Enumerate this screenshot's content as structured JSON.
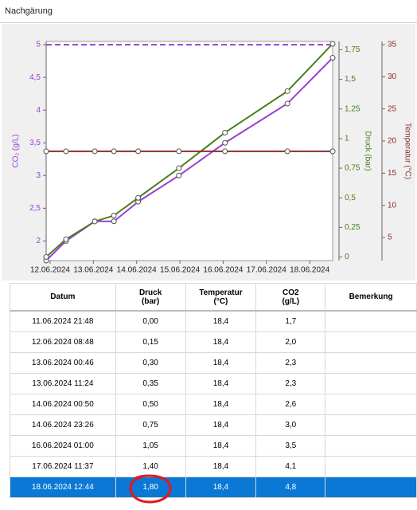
{
  "tab": {
    "title": "Nachgärung"
  },
  "chart_data": {
    "type": "line",
    "ylabel": "CO₂ (g/L)",
    "y2label": "Druck (bar)",
    "y3label": "Temperatur (°C)",
    "x": [
      "11.06.2024 21:48",
      "12.06.2024 08:48",
      "13.06.2024 00:46",
      "13.06.2024 11:24",
      "14.06.2024 00:50",
      "14.06.2024 23:26",
      "16.06.2024 01:00",
      "17.06.2024 11:37",
      "18.06.2024 12:44"
    ],
    "xlim": [
      "11.06.2024 21:48",
      "18.06.2024 12:44"
    ],
    "xticks": [
      "12.06.2024",
      "13.06.2024",
      "14.06.2024",
      "15.06.2024",
      "16.06.2024",
      "17.06.2024",
      "18.06.2024"
    ],
    "ylim": [
      1.7,
      5.05
    ],
    "yticks": [
      2,
      {
        "value": 2.5,
        "label": "2,5"
      },
      3,
      {
        "value": 3.5,
        "label": "3,5"
      },
      4,
      {
        "value": 4.5,
        "label": "4,5"
      },
      5
    ],
    "y2lim": [
      -0.03,
      1.82
    ],
    "y2ticks": [
      0,
      {
        "value": 0.25,
        "label": "0,25"
      },
      {
        "value": 0.5,
        "label": "0,5"
      },
      {
        "value": 0.75,
        "label": "0,75"
      },
      1,
      {
        "value": 1.25,
        "label": "1,25"
      },
      {
        "value": 1.5,
        "label": "1,5"
      },
      {
        "value": 1.75,
        "label": "1,75"
      }
    ],
    "y3lim": [
      1.4,
      35.5
    ],
    "y3ticks": [
      5,
      10,
      15,
      20,
      25,
      30,
      35
    ],
    "hlines": [
      {
        "value": 5,
        "axis": "y",
        "color": "#9b3fd6"
      }
    ],
    "series": [
      {
        "color": "#9b3fd6",
        "axis": "y",
        "values": [
          1.7,
          2.0,
          2.3,
          2.3,
          2.6,
          3.0,
          3.5,
          4.1,
          4.8
        ]
      },
      {
        "color": "#4a7f1c",
        "axis": "y2",
        "values": [
          0,
          0.15,
          0.3,
          0.35,
          0.5,
          0.75,
          1.05,
          1.4,
          1.8
        ]
      },
      {
        "color": "#8b2e2e",
        "axis": "y3",
        "values": [
          18.4,
          18.4,
          18.4,
          18.4,
          18.4,
          18.4,
          18.4,
          18.4,
          18.4
        ]
      }
    ]
  },
  "table": {
    "columns": [
      [
        "Datum"
      ],
      [
        "Druck",
        "(bar)"
      ],
      [
        "Temperatur",
        "(°C)"
      ],
      [
        "CO2",
        "(g/L)"
      ],
      [
        "Bemerkung"
      ]
    ],
    "rows": [
      [
        "11.06.2024 21:48",
        "0,00",
        "18,4",
        "1,7"
      ],
      [
        "12.06.2024 08:48",
        "0,15",
        "18,4",
        "2,0"
      ],
      [
        "13.06.2024 00:46",
        "0,30",
        "18,4",
        "2,3"
      ],
      [
        "13.06.2024 11:24",
        "0,35",
        "18,4",
        "2,3"
      ],
      [
        "14.06.2024 00:50",
        "0,50",
        "18,4",
        "2,6"
      ],
      [
        "14.06.2024 23:26",
        "0,75",
        "18,4",
        "3,0"
      ],
      [
        "16.06.2024 01:00",
        "1,05",
        "18,4",
        "3,5"
      ],
      [
        "17.06.2024 11:37",
        "1,40",
        "18,4",
        "4,1"
      ],
      [
        "18.06.2024 12:44",
        "1,80",
        "18,4",
        "4,8"
      ]
    ],
    "selected_row": 8
  }
}
